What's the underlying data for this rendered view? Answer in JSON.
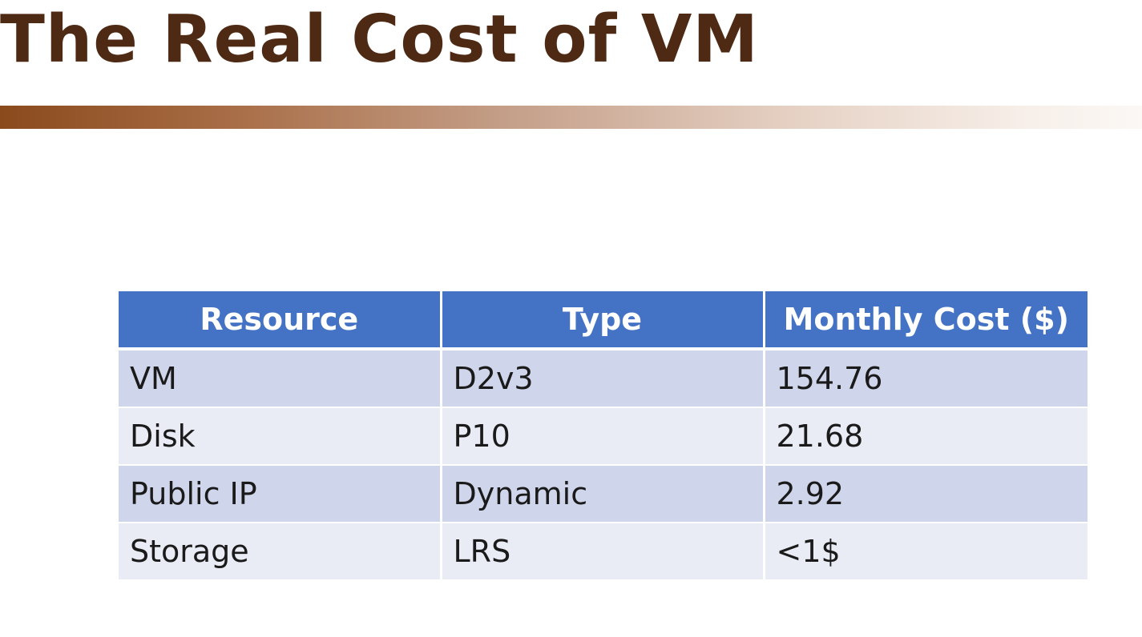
{
  "title": "The Real Cost of VM",
  "table": {
    "headers": [
      "Resource",
      "Type",
      "Monthly Cost ($)"
    ],
    "rows": [
      [
        "VM",
        "D2v3",
        "154.76"
      ],
      [
        "Disk",
        "P10",
        "21.68"
      ],
      [
        "Public IP",
        "Dynamic",
        "2.92"
      ],
      [
        "Storage",
        "LRS",
        "<1$"
      ]
    ]
  },
  "colors": {
    "title": "#4e2a14",
    "header_bg": "#4472c4",
    "row_odd": "#cfd5ea",
    "row_even": "#e9ebf5",
    "accent_bar_start": "#8a4a1c"
  }
}
